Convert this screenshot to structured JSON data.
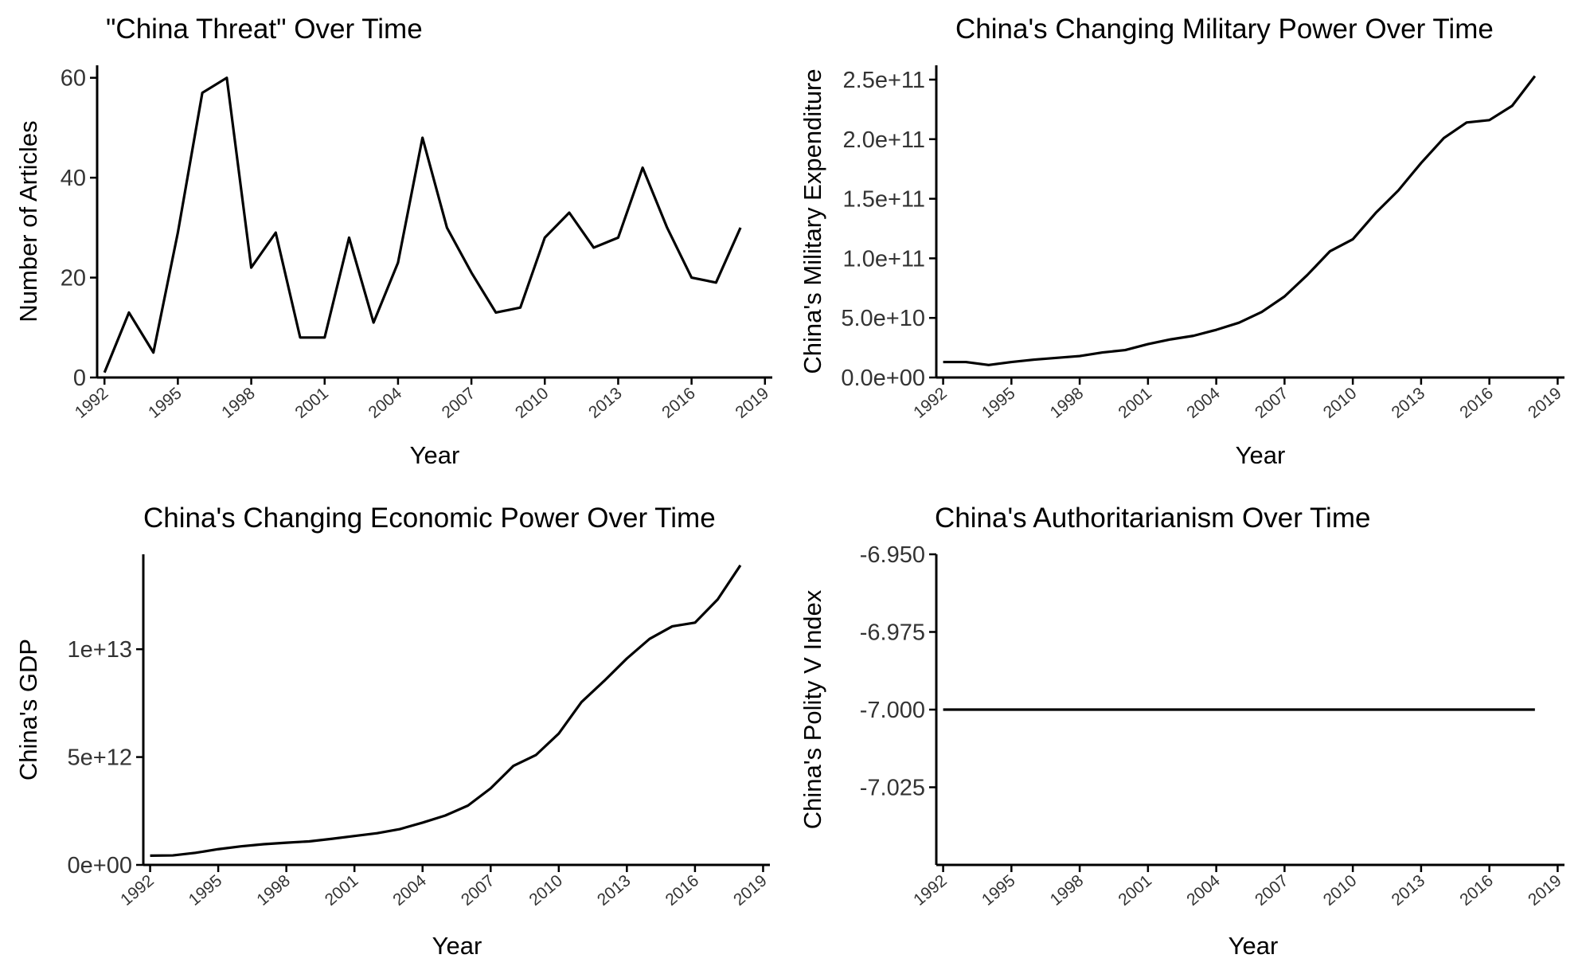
{
  "chart_data": [
    {
      "type": "line",
      "title": "\"China Threat\" Over Time",
      "xlabel": "Year",
      "ylabel": "Number of Articles",
      "xlim": [
        1991.7,
        2019.3
      ],
      "ylim": [
        0,
        62.5
      ],
      "x_ticks": [
        "1992",
        "1995",
        "1998",
        "2001",
        "2004",
        "2007",
        "2010",
        "2013",
        "2016",
        "2019"
      ],
      "y_ticks": [
        {
          "value": 0,
          "label": "0"
        },
        {
          "value": 20,
          "label": "20"
        },
        {
          "value": 40,
          "label": "40"
        },
        {
          "value": 60,
          "label": "60"
        }
      ],
      "x": [
        1992,
        1993,
        1994,
        1995,
        1996,
        1997,
        1998,
        1999,
        2000,
        2001,
        2002,
        2003,
        2004,
        2005,
        2006,
        2007,
        2008,
        2009,
        2010,
        2011,
        2012,
        2013,
        2014,
        2015,
        2016,
        2017,
        2018
      ],
      "series": [
        {
          "values": [
            1,
            13,
            5,
            29,
            57,
            60,
            22,
            29,
            8,
            8,
            28,
            11,
            23,
            48,
            30,
            21,
            13,
            14,
            28,
            33,
            26,
            28,
            42,
            30,
            20,
            19,
            30
          ]
        }
      ],
      "grid": false
    },
    {
      "type": "line",
      "title": "China's Changing Military Power Over Time",
      "xlabel": "Year",
      "ylabel": "China's Military Expenditure",
      "xlim": [
        1991.7,
        2019.3
      ],
      "ylim": [
        0,
        262000000000.0
      ],
      "x_ticks": [
        "1992",
        "1995",
        "1998",
        "2001",
        "2004",
        "2007",
        "2010",
        "2013",
        "2016",
        "2019"
      ],
      "y_ticks": [
        {
          "value": 0,
          "label": "0.0e+00"
        },
        {
          "value": 50000000000.0,
          "label": "5.0e+10"
        },
        {
          "value": 100000000000.0,
          "label": "1.0e+11"
        },
        {
          "value": 150000000000.0,
          "label": "1.5e+11"
        },
        {
          "value": 200000000000.0,
          "label": "2.0e+11"
        },
        {
          "value": 250000000000.0,
          "label": "2.5e+11"
        }
      ],
      "x": [
        1992,
        1993,
        1994,
        1995,
        1996,
        1997,
        1998,
        1999,
        2000,
        2001,
        2002,
        2003,
        2004,
        2005,
        2006,
        2007,
        2008,
        2009,
        2010,
        2011,
        2012,
        2013,
        2014,
        2015,
        2016,
        2017,
        2018
      ],
      "series": [
        {
          "values": [
            13000000000.0,
            13000000000.0,
            10500000000.0,
            13000000000.0,
            15000000000.0,
            16500000000.0,
            18000000000.0,
            21000000000.0,
            23000000000.0,
            28000000000.0,
            32000000000.0,
            35000000000.0,
            40000000000.0,
            46000000000.0,
            55000000000.0,
            68000000000.0,
            86000000000.0,
            106000000000.0,
            116000000000.0,
            138000000000.0,
            157000000000.0,
            180000000000.0,
            201000000000.0,
            214000000000.0,
            216000000000.0,
            228000000000.0,
            253000000000.0
          ]
        }
      ],
      "grid": false
    },
    {
      "type": "line",
      "title": "China's Changing Economic Power Over Time",
      "xlabel": "Year",
      "ylabel": "China's GDP",
      "xlim": [
        1991.7,
        2019.3
      ],
      "ylim": [
        0,
        14400000000000.0
      ],
      "x_ticks": [
        "1992",
        "1995",
        "1998",
        "2001",
        "2004",
        "2007",
        "2010",
        "2013",
        "2016",
        "2019"
      ],
      "y_ticks": [
        {
          "value": 0,
          "label": "0e+00"
        },
        {
          "value": 5000000000000.0,
          "label": "5e+12"
        },
        {
          "value": 10000000000000.0,
          "label": "1e+13"
        }
      ],
      "x": [
        1992,
        1993,
        1994,
        1995,
        1996,
        1997,
        1998,
        1999,
        2000,
        2001,
        2002,
        2003,
        2004,
        2005,
        2006,
        2007,
        2008,
        2009,
        2010,
        2011,
        2012,
        2013,
        2014,
        2015,
        2016,
        2017,
        2018
      ],
      "series": [
        {
          "values": [
            430000000000.0,
            440000000000.0,
            560000000000.0,
            730000000000.0,
            860000000000.0,
            960000000000.0,
            1030000000000.0,
            1090000000000.0,
            1210000000000.0,
            1340000000000.0,
            1470000000000.0,
            1660000000000.0,
            1960000000000.0,
            2290000000000.0,
            2750000000000.0,
            3550000000000.0,
            4590000000000.0,
            5100000000000.0,
            6090000000000.0,
            7550000000000.0,
            8530000000000.0,
            9570000000000.0,
            10480000000000.0,
            11060000000000.0,
            11230000000000.0,
            12310000000000.0,
            13890000000000.0
          ]
        }
      ],
      "grid": false
    },
    {
      "type": "line",
      "title": "China's Authoritarianism Over Time",
      "xlabel": "Year",
      "ylabel": "China's Polity V Index",
      "xlim": [
        1991.7,
        2019.3
      ],
      "ylim": [
        -7.05,
        -6.95
      ],
      "x_ticks": [
        "1992",
        "1995",
        "1998",
        "2001",
        "2004",
        "2007",
        "2010",
        "2013",
        "2016",
        "2019"
      ],
      "y_ticks": [
        {
          "value": -6.95,
          "label": "-6.950"
        },
        {
          "value": -6.975,
          "label": "-6.975"
        },
        {
          "value": -7.0,
          "label": "-7.000"
        },
        {
          "value": -7.025,
          "label": "-7.025"
        }
      ],
      "x": [
        1992,
        1993,
        1994,
        1995,
        1996,
        1997,
        1998,
        1999,
        2000,
        2001,
        2002,
        2003,
        2004,
        2005,
        2006,
        2007,
        2008,
        2009,
        2010,
        2011,
        2012,
        2013,
        2014,
        2015,
        2016,
        2017,
        2018
      ],
      "series": [
        {
          "values": [
            -7,
            -7,
            -7,
            -7,
            -7,
            -7,
            -7,
            -7,
            -7,
            -7,
            -7,
            -7,
            -7,
            -7,
            -7,
            -7,
            -7,
            -7,
            -7,
            -7,
            -7,
            -7,
            -7,
            -7,
            -7,
            -7,
            -7
          ]
        }
      ],
      "grid": false
    }
  ]
}
